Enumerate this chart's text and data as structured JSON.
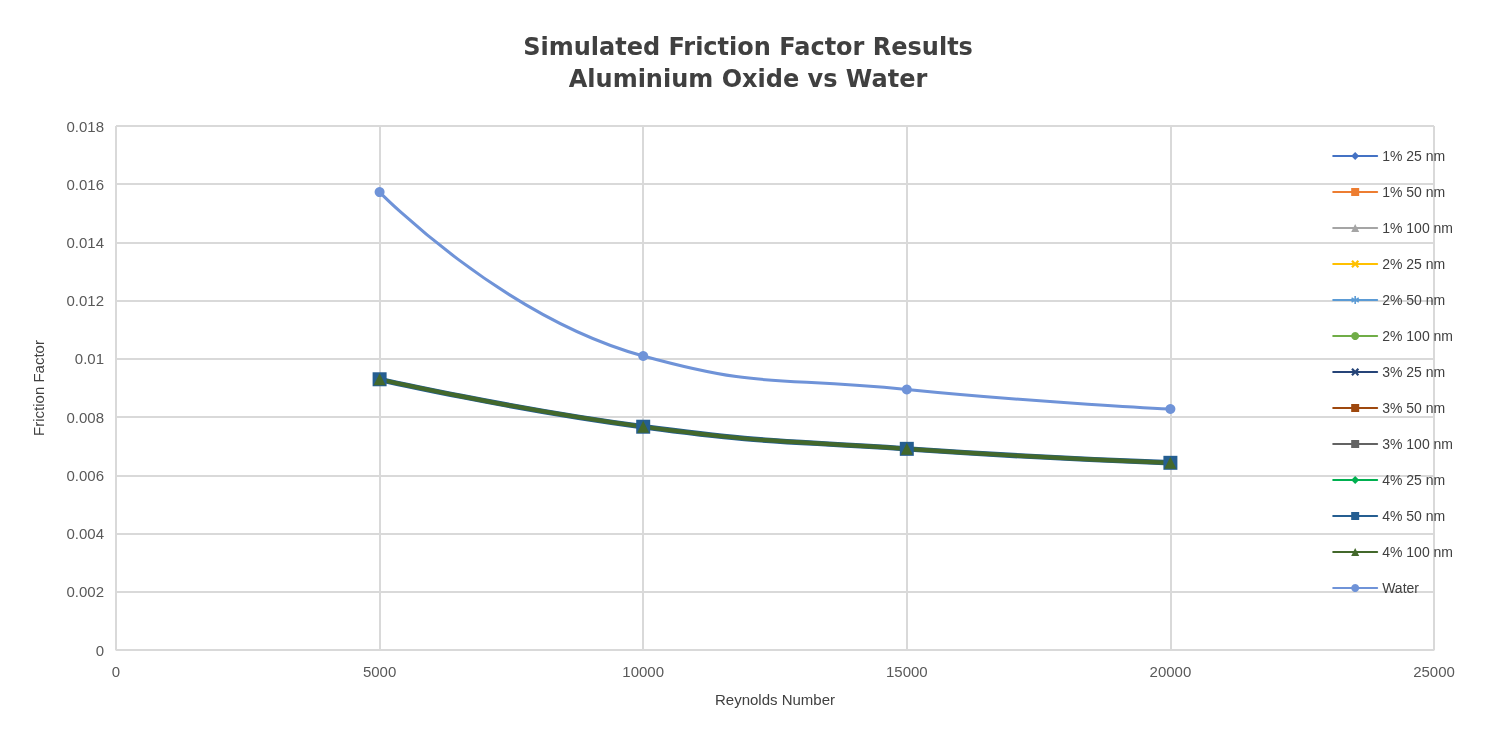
{
  "chart_data": {
    "type": "line",
    "title": "Simulated Friction Factor Results\nAluminium Oxide vs Water",
    "xlabel": "Reynolds Number",
    "ylabel": "Friction Factor",
    "x": [
      5000,
      10000,
      15000,
      20000
    ],
    "xlim": [
      0,
      25000
    ],
    "xticks": [
      0,
      5000,
      10000,
      15000,
      20000,
      25000
    ],
    "ylim": [
      0,
      0.018
    ],
    "yticks": [
      0,
      0.002,
      0.004,
      0.006,
      0.008,
      0.01,
      0.012,
      0.014,
      0.016,
      0.018
    ],
    "grid": true,
    "legend": "right",
    "line_style": "solid",
    "series": [
      {
        "name": "1% 25 nm",
        "color": "#4472c4",
        "marker": "diamond",
        "values": [
          null,
          null,
          null,
          null
        ]
      },
      {
        "name": "1% 50 nm",
        "color": "#ed7d31",
        "marker": "square",
        "values": [
          null,
          null,
          null,
          null
        ]
      },
      {
        "name": "1% 100 nm",
        "color": "#a5a5a5",
        "marker": "triangle",
        "values": [
          null,
          null,
          null,
          null
        ]
      },
      {
        "name": "2% 25 nm",
        "color": "#ffc000",
        "marker": "cross",
        "values": [
          null,
          null,
          null,
          null
        ]
      },
      {
        "name": "2% 50 nm",
        "color": "#5b9bd5",
        "marker": "star",
        "values": [
          null,
          null,
          null,
          null
        ]
      },
      {
        "name": "2% 100 nm",
        "color": "#70ad47",
        "marker": "circle",
        "values": [
          null,
          null,
          null,
          null
        ]
      },
      {
        "name": "3% 25 nm",
        "color": "#264478",
        "marker": "cross",
        "values": [
          null,
          null,
          null,
          null
        ]
      },
      {
        "name": "3% 50 nm",
        "color": "#9e480e",
        "marker": "square",
        "values": [
          null,
          null,
          null,
          null
        ]
      },
      {
        "name": "3% 100 nm",
        "color": "#636363",
        "marker": "square",
        "values": [
          null,
          null,
          null,
          null
        ]
      },
      {
        "name": "4% 25 nm",
        "color": "#00b050",
        "marker": "diamond",
        "values": [
          null,
          null,
          null,
          null
        ]
      },
      {
        "name": "4% 50 nm",
        "color": "#255e91",
        "marker": "square",
        "values": [
          0.0093,
          0.00767,
          0.00691,
          0.00643
        ]
      },
      {
        "name": "4% 100 nm",
        "color": "#43682b",
        "marker": "triangle",
        "values": [
          0.0093,
          0.00767,
          0.00691,
          0.00643
        ]
      },
      {
        "name": "Water",
        "color": "#6f93d8",
        "marker": "circle",
        "values": [
          0.01573,
          0.0101,
          0.00895,
          0.00828
        ]
      }
    ]
  }
}
